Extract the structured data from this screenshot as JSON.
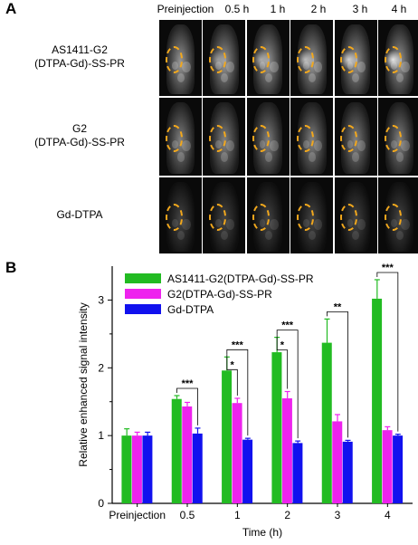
{
  "panel_a": {
    "label": "A",
    "time_headers": [
      "Preinjection",
      "0.5 h",
      "1 h",
      "2 h",
      "3 h",
      "4 h"
    ],
    "rows": [
      {
        "label_line1": "AS1411-G2",
        "label_line2": "(DTPA-Gd)-SS-PR",
        "brightness": "bright"
      },
      {
        "label_line1": "G2",
        "label_line2": "(DTPA-Gd)-SS-PR",
        "brightness": "medium"
      },
      {
        "label_line1": "Gd-DTPA",
        "label_line2": "",
        "brightness": "dark"
      }
    ],
    "roi_color": "#f2a81d"
  },
  "panel_b": {
    "label": "B"
  },
  "chart_data": {
    "type": "bar",
    "categories": [
      "Preinjection",
      "0.5",
      "1",
      "2",
      "3",
      "4"
    ],
    "xlabel": "Time (h)",
    "ylabel": "Relative enhanced signal intensity",
    "ylim": [
      0,
      3.5
    ],
    "yticks": [
      0,
      1,
      2,
      3
    ],
    "legend_position": "top-left",
    "series": [
      {
        "name": "AS1411-G2(DTPA-Gd)-SS-PR",
        "color": "#22bb22",
        "values": [
          1.0,
          1.54,
          1.96,
          2.23,
          2.37,
          3.02
        ],
        "errors": [
          0.1,
          0.05,
          0.2,
          0.22,
          0.35,
          0.28
        ]
      },
      {
        "name": "G2(DTPA-Gd)-SS-PR",
        "color": "#ee22ee",
        "values": [
          1.0,
          1.43,
          1.48,
          1.55,
          1.21,
          1.08
        ],
        "errors": [
          0.05,
          0.06,
          0.07,
          0.1,
          0.1,
          0.05
        ]
      },
      {
        "name": "Gd-DTPA",
        "color": "#1111ee",
        "values": [
          1.0,
          1.03,
          0.94,
          0.89,
          0.91,
          1.0
        ],
        "errors": [
          0.05,
          0.08,
          0.02,
          0.03,
          0.02,
          0.02
        ]
      }
    ],
    "significance": [
      {
        "category_index": 1,
        "marks": [
          "***"
        ]
      },
      {
        "category_index": 2,
        "marks": [
          "***",
          "*"
        ]
      },
      {
        "category_index": 3,
        "marks": [
          "***",
          "*"
        ]
      },
      {
        "category_index": 4,
        "marks": [
          "**"
        ]
      },
      {
        "category_index": 5,
        "marks": [
          "***"
        ]
      }
    ]
  }
}
